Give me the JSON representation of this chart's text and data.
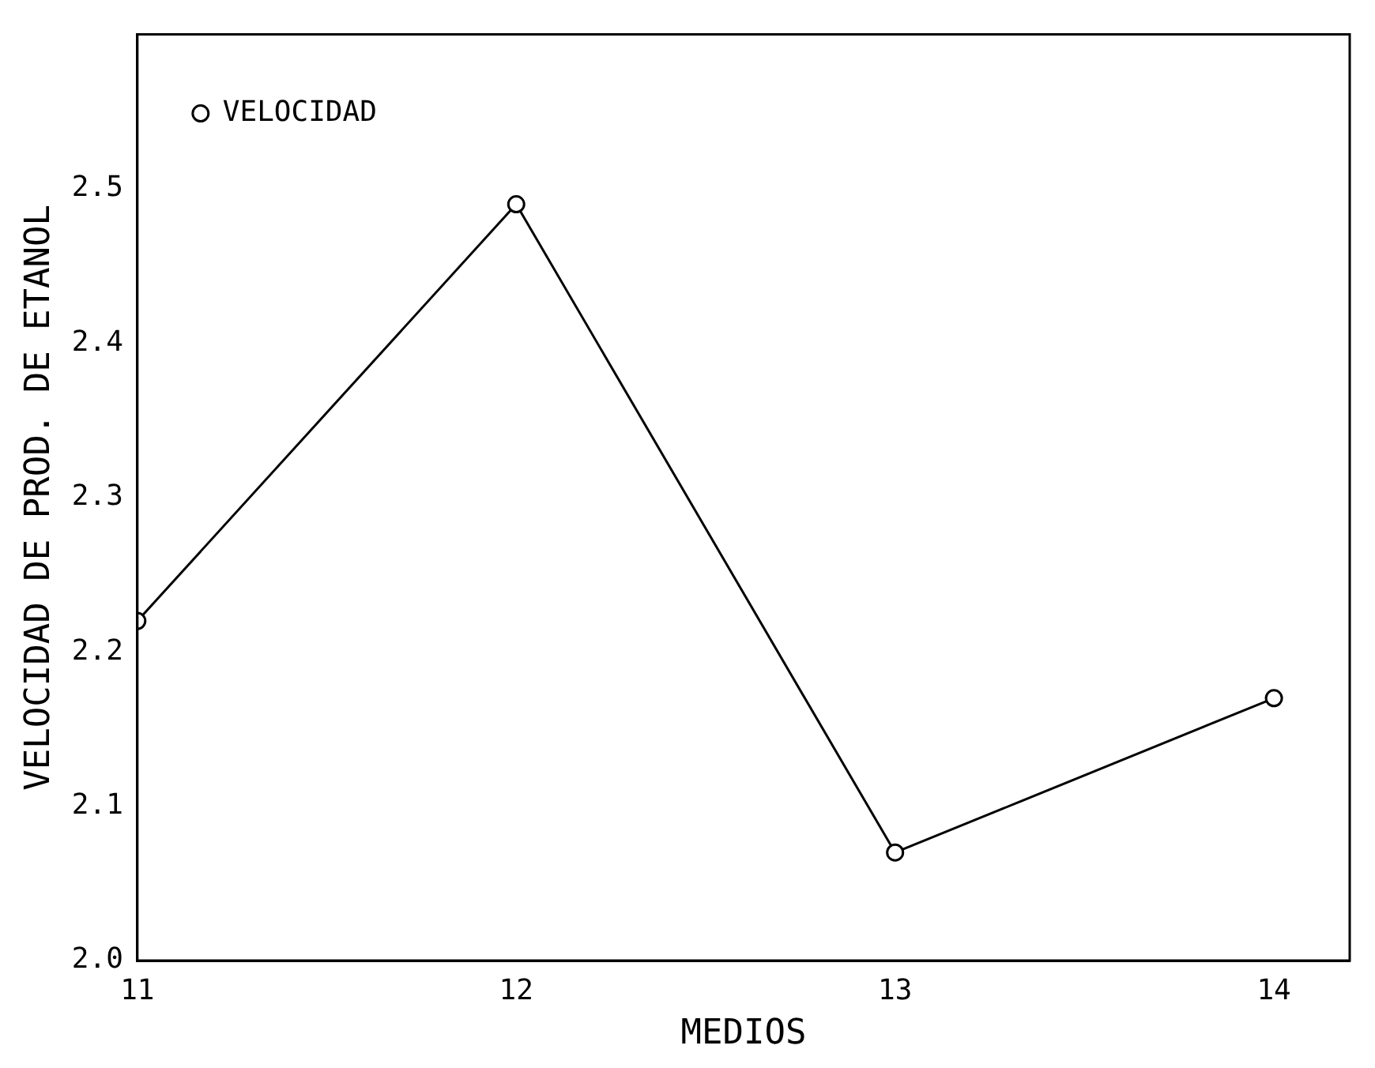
{
  "chart_data": {
    "type": "line",
    "xlabel": "MEDIOS",
    "ylabel": "VELOCIDAD DE PROD. DE ETANOL",
    "x": [
      11,
      12,
      13,
      14
    ],
    "series": [
      {
        "name": "VELOCIDAD",
        "color": "#000000",
        "values": [
          2.22,
          2.49,
          2.07,
          2.17
        ]
      }
    ],
    "xlim": [
      11,
      14.2
    ],
    "xticks": [
      11,
      12,
      13,
      14
    ],
    "ylim": [
      2.0,
      2.6
    ],
    "yticks": [
      {
        "value": 2.0,
        "label": "2.0"
      },
      2.1,
      2.2,
      2.3,
      2.4,
      2.5
    ],
    "grid": false,
    "legend": "top left",
    "marker": "circle",
    "line_style": "solid"
  }
}
